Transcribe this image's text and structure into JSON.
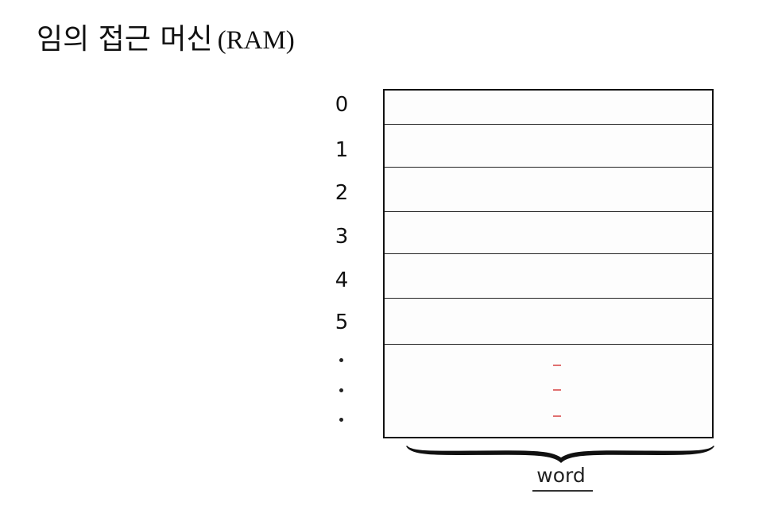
{
  "title": {
    "korean": "임의 접근 머신",
    "latin": "(RAM)"
  },
  "memory": {
    "addresses": [
      "0",
      "1",
      "2",
      "3",
      "4",
      "5"
    ],
    "continuation": "…",
    "word_label": "word"
  },
  "colors": {
    "line": "#111111",
    "dash": "#e07070"
  }
}
